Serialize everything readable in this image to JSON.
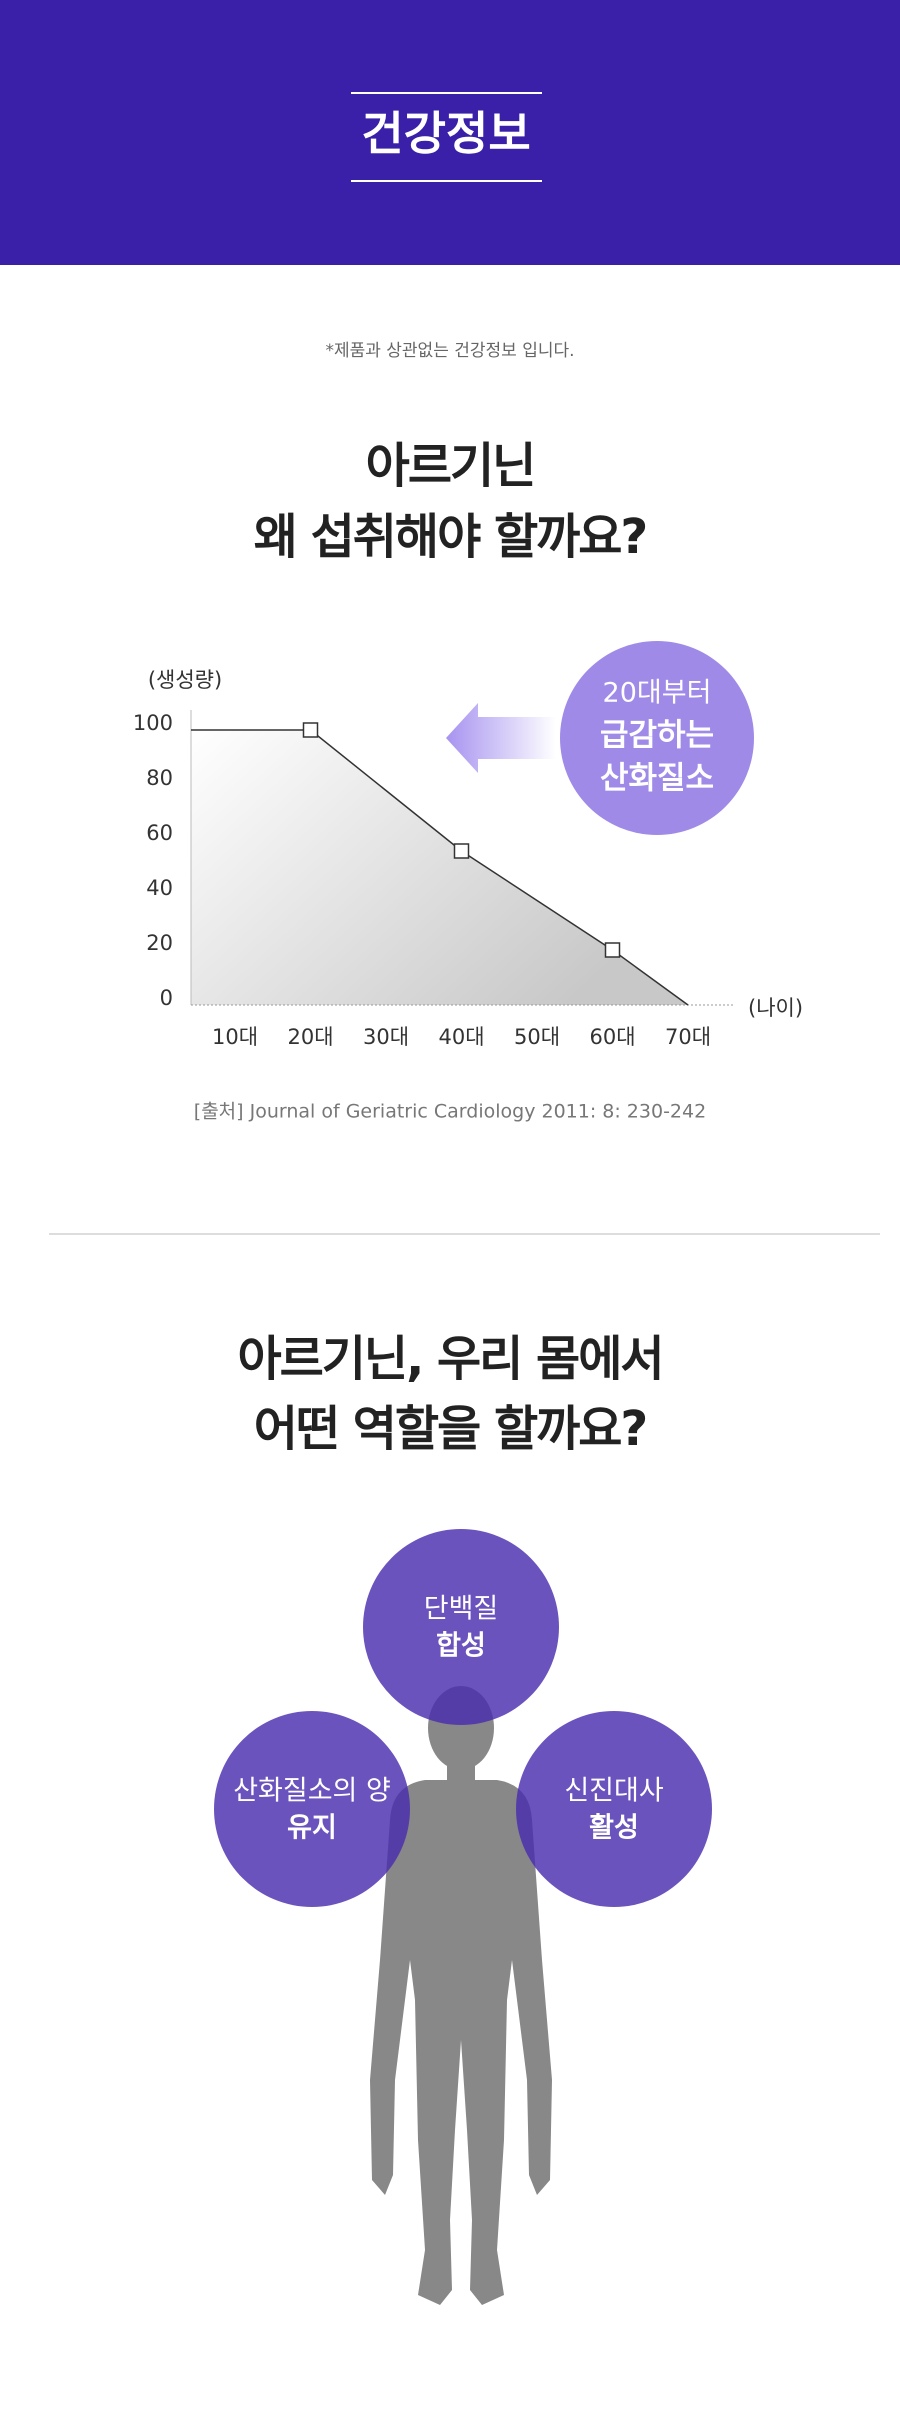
{
  "header": {
    "title": "건강정보"
  },
  "notice": "*제품과 상관없는 건강정보 입니다.",
  "section1": {
    "title": [
      "아르기닌",
      "왜 섭취해야 할까요?"
    ]
  },
  "chart_data": {
    "type": "line",
    "y_label": "(생성량)",
    "x_label": "(나이)",
    "categories": [
      "10대",
      "20대",
      "30대",
      "40대",
      "50대",
      "60대",
      "70대"
    ],
    "values": [
      100,
      100,
      78,
      56,
      38,
      20,
      0
    ],
    "color": "#333333",
    "markers": [
      1,
      3,
      5
    ],
    "ylim": [
      0,
      100
    ],
    "yticks": [
      0,
      20,
      40,
      60,
      80,
      100
    ],
    "annotation": [
      "20대부터",
      "급감하는",
      "산화질소"
    ],
    "source": "[출처] Journal of Geriatric Cardiology 2011: 8: 230-242"
  },
  "section2": {
    "title": [
      "아르기닌, 우리 몸에서",
      "어떤 역할을 할까요?"
    ],
    "roles": [
      {
        "lines": [
          "단백질",
          "합성"
        ]
      },
      {
        "lines": [
          "산화질소의 양",
          "유지"
        ]
      },
      {
        "lines": [
          "신진대사",
          "활성"
        ]
      }
    ]
  }
}
